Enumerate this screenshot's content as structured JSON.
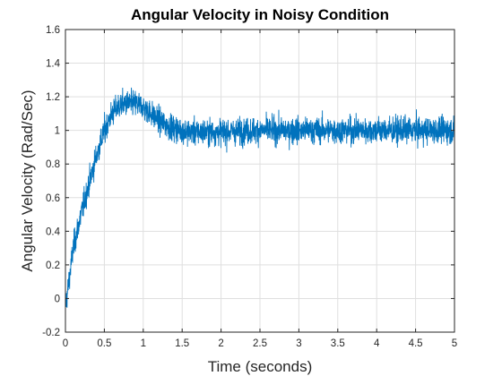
{
  "chart_data": {
    "type": "line",
    "title": "Angular Velocity in Noisy Condition",
    "xlabel": "Time (seconds)",
    "ylabel": "Angular Velocity (Rad/Sec)",
    "xlim": [
      0,
      5
    ],
    "ylim": [
      -0.2,
      1.6
    ],
    "xticks": [
      "0",
      "0.5",
      "1",
      "1.5",
      "2",
      "2.5",
      "3",
      "3.5",
      "4",
      "4.5",
      "5"
    ],
    "yticks": [
      "-0.2",
      "0",
      "0.2",
      "0.4",
      "0.6",
      "0.8",
      "1",
      "1.2",
      "1.4",
      "1.6"
    ],
    "grid": true,
    "series": [
      {
        "color": "#0072bd",
        "noise_amplitude": 0.1,
        "x": [
          0,
          0.05,
          0.1,
          0.2,
          0.3,
          0.4,
          0.5,
          0.6,
          0.7,
          0.8,
          0.9,
          1.0,
          1.1,
          1.2,
          1.3,
          1.4,
          1.5,
          1.6,
          1.8,
          2.0,
          2.5,
          3.0,
          3.5,
          4.0,
          4.5,
          5.0
        ],
        "y": [
          -0.05,
          0.12,
          0.3,
          0.5,
          0.68,
          0.85,
          1.0,
          1.1,
          1.15,
          1.16,
          1.16,
          1.14,
          1.1,
          1.06,
          1.03,
          1.01,
          1.0,
          0.99,
          0.99,
          0.99,
          1.0,
          1.0,
          1.0,
          1.0,
          1.0,
          1.0
        ]
      }
    ]
  }
}
